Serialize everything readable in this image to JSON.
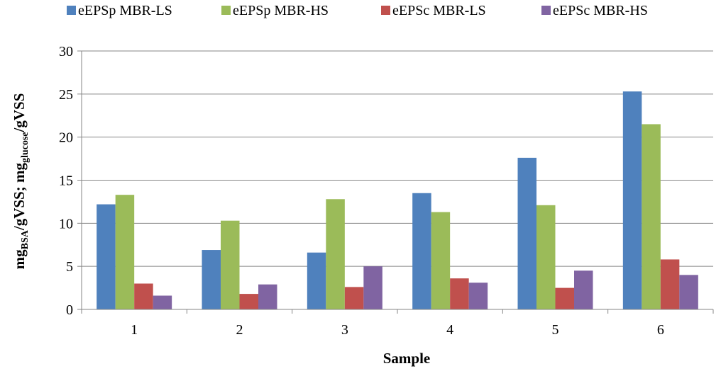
{
  "chart_data": {
    "type": "bar",
    "title": "",
    "xlabel": "Sample",
    "ylabel": {
      "parts": [
        "mg",
        "BSA",
        "/gVSS; mg",
        "glucose",
        "/gVSS"
      ]
    },
    "categories": [
      "1",
      "2",
      "3",
      "4",
      "5",
      "6"
    ],
    "ylim": [
      0,
      30
    ],
    "yticks": [
      "0",
      "5",
      "10",
      "15",
      "20",
      "25",
      "30"
    ],
    "grid": true,
    "legend": "top",
    "series": [
      {
        "name": "eEPSp MBR-LS",
        "color": "#4f81bd",
        "values": [
          12.2,
          6.9,
          6.6,
          13.5,
          17.6,
          25.3
        ]
      },
      {
        "name": "eEPSp MBR-HS",
        "color": "#9bbb59",
        "values": [
          13.3,
          10.3,
          12.8,
          11.3,
          12.1,
          21.5
        ]
      },
      {
        "name": "eEPSc MBR-LS",
        "color": "#c0504d",
        "values": [
          3.0,
          1.8,
          2.6,
          3.6,
          2.5,
          5.8
        ]
      },
      {
        "name": "eEPSc MBR-HS",
        "color": "#8064a2",
        "values": [
          1.6,
          2.9,
          5.0,
          3.1,
          4.5,
          4.0
        ]
      }
    ]
  }
}
